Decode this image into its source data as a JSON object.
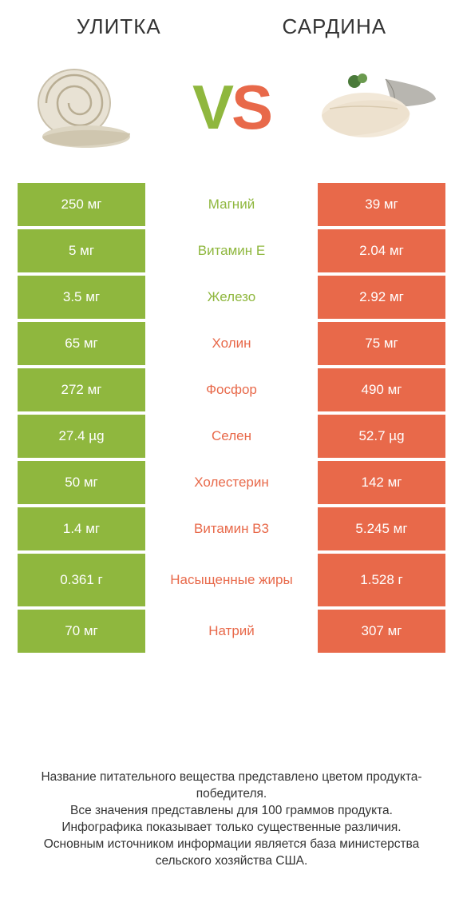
{
  "colors": {
    "green": "#8fb73e",
    "orange": "#e8694a",
    "text_green": "#8fb73e",
    "text_orange": "#e8694a",
    "white": "#ffffff"
  },
  "header": {
    "left": "УЛИТКА",
    "right": "САРДИНА"
  },
  "vs": {
    "v": "V",
    "s": "S"
  },
  "rows": [
    {
      "left": "250 мг",
      "mid": "Магний",
      "mid_color": "green",
      "right": "39 мг"
    },
    {
      "left": "5 мг",
      "mid": "Витамин E",
      "mid_color": "green",
      "right": "2.04 мг"
    },
    {
      "left": "3.5 мг",
      "mid": "Железо",
      "mid_color": "green",
      "right": "2.92 мг"
    },
    {
      "left": "65 мг",
      "mid": "Холин",
      "mid_color": "orange",
      "right": "75 мг"
    },
    {
      "left": "272 мг",
      "mid": "Фосфор",
      "mid_color": "orange",
      "right": "490 мг"
    },
    {
      "left": "27.4 µg",
      "mid": "Селен",
      "mid_color": "orange",
      "right": "52.7 µg"
    },
    {
      "left": "50 мг",
      "mid": "Холестерин",
      "mid_color": "orange",
      "right": "142 мг"
    },
    {
      "left": "1.4 мг",
      "mid": "Витамин B3",
      "mid_color": "orange",
      "right": "5.245 мг"
    },
    {
      "left": "0.361 г",
      "mid": "Насыщенные жиры",
      "mid_color": "orange",
      "right": "1.528 г",
      "tall": true
    },
    {
      "left": "70 мг",
      "mid": "Натрий",
      "mid_color": "orange",
      "right": "307 мг"
    }
  ],
  "footer": {
    "line1": "Название питательного вещества представлено цветом продукта-победителя.",
    "line2": "Все значения представлены для 100 граммов продукта.",
    "line3": "Инфографика показывает только существенные различия.",
    "line4": "Основным источником информации является база министерства сельского хозяйства США."
  }
}
